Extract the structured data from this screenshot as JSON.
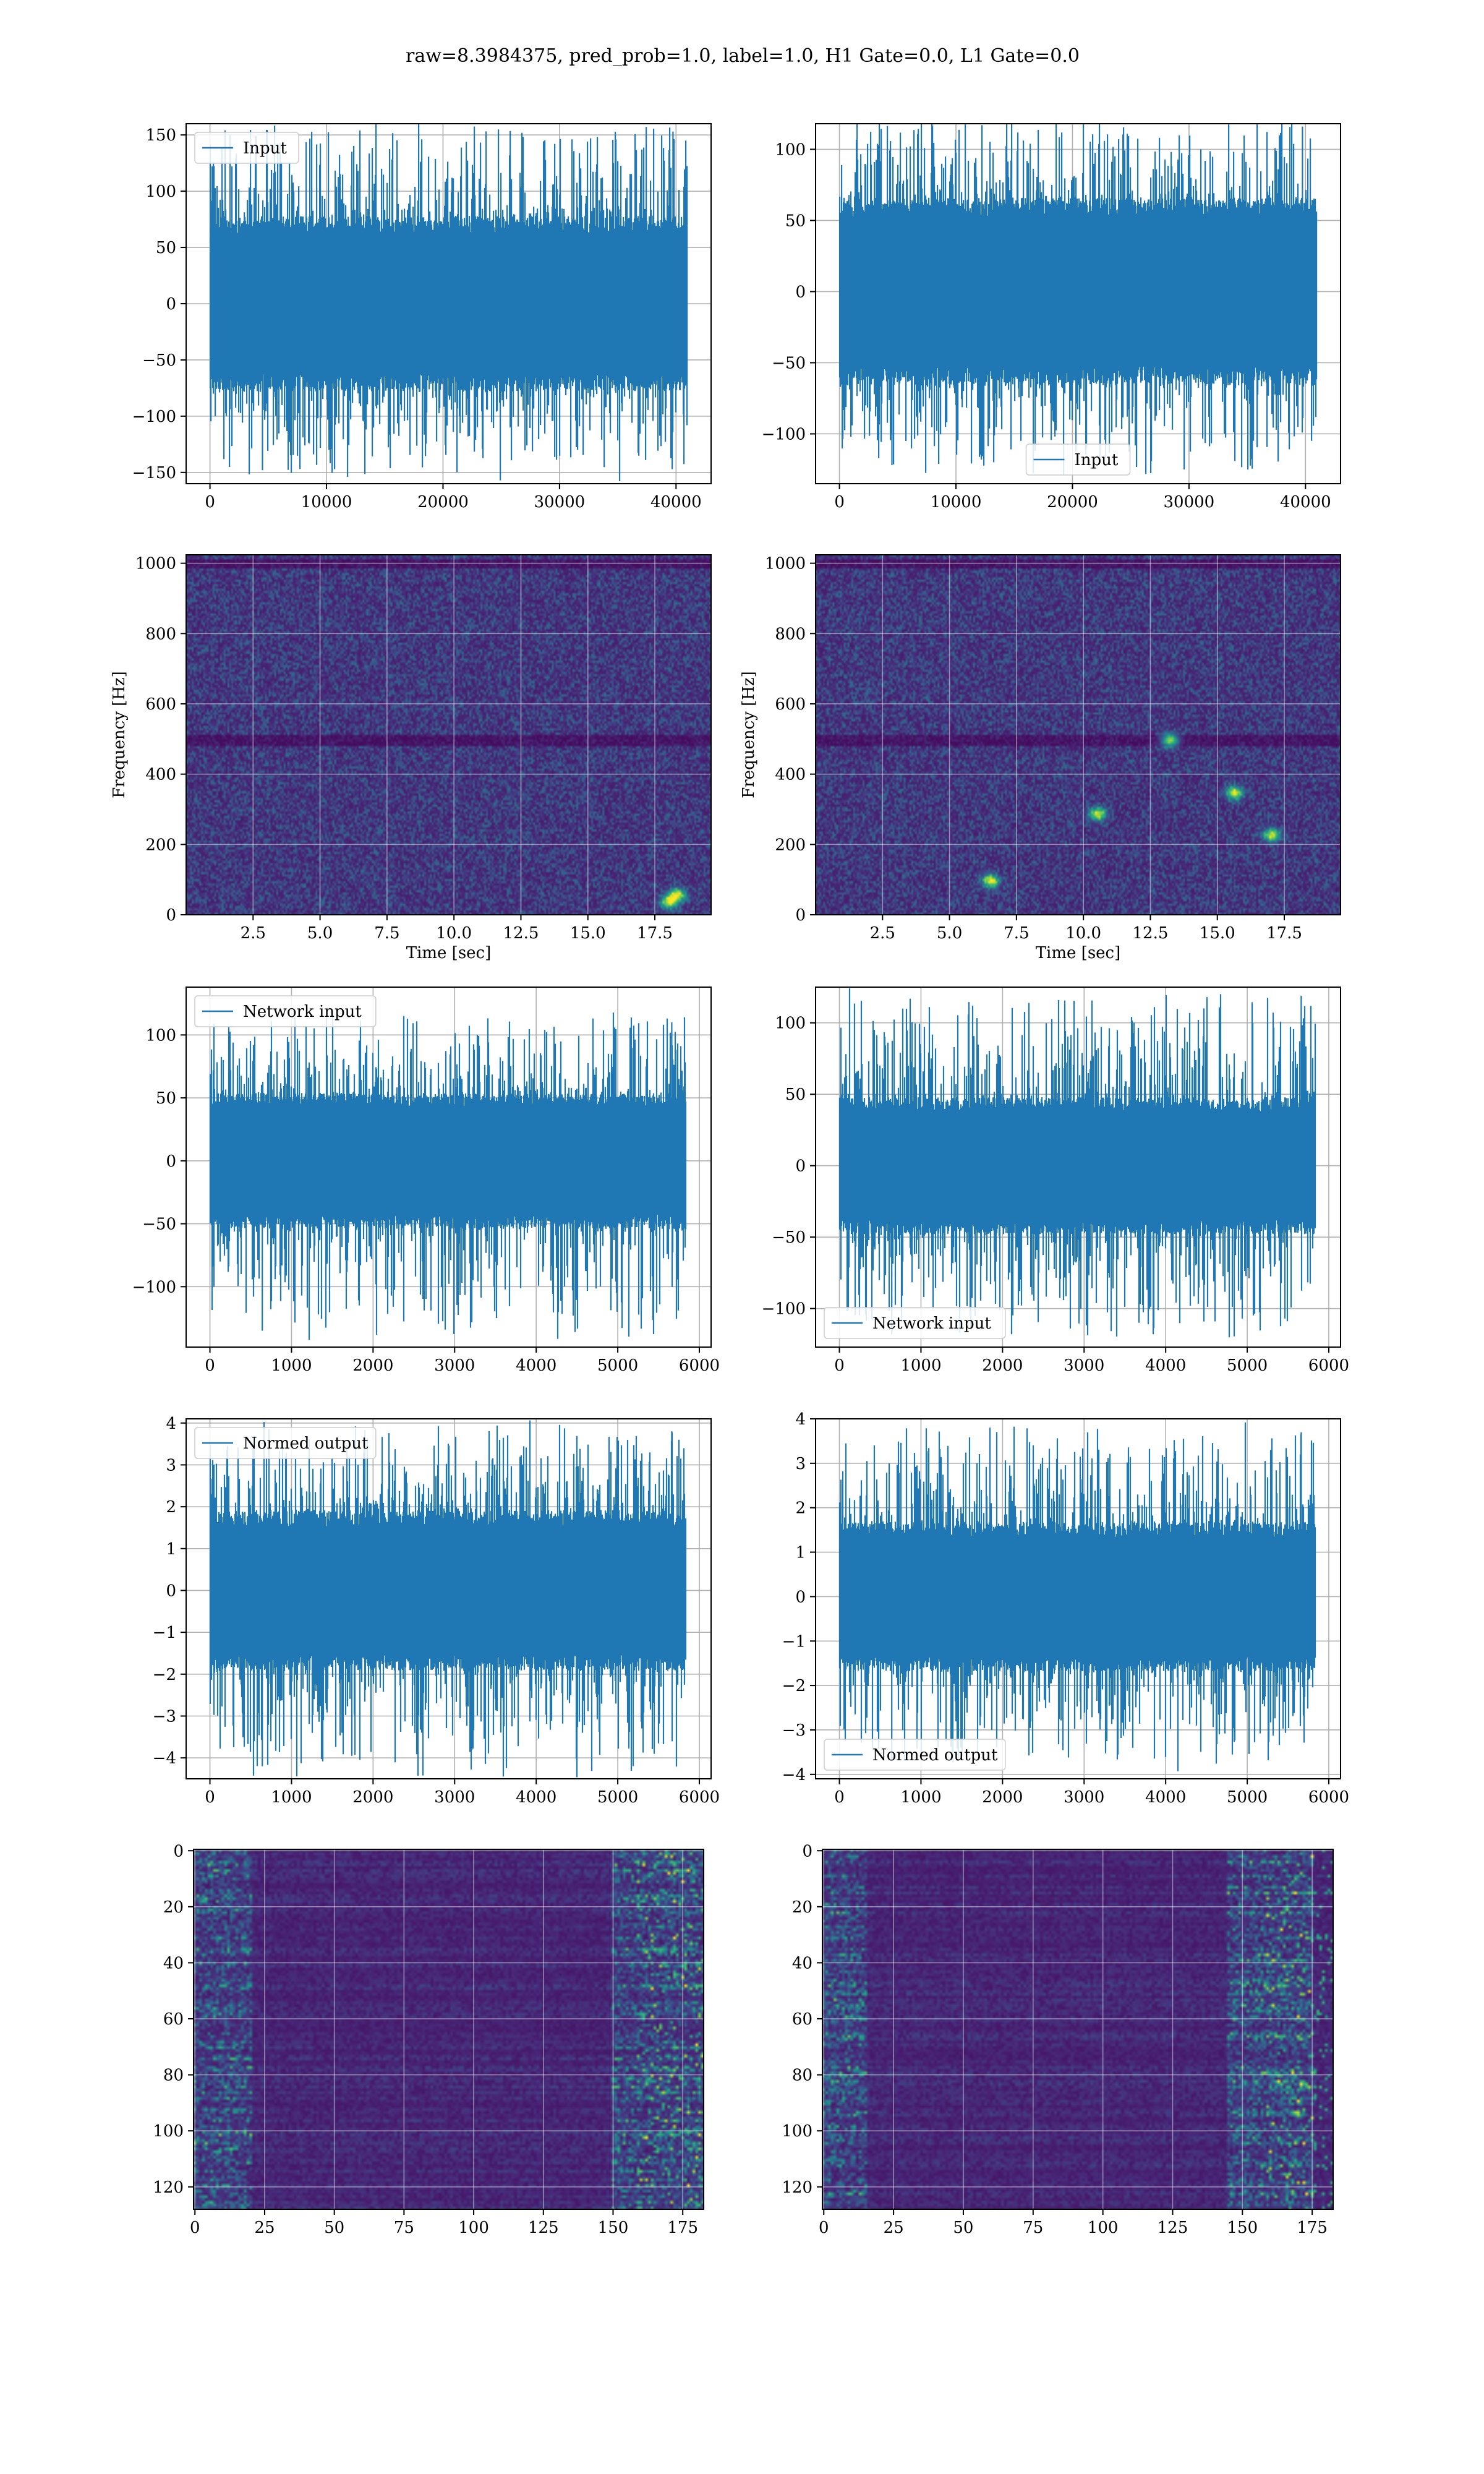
{
  "figure": {
    "suptitle": "raw=8.3984375, pred_prob=1.0, label=1.0, H1 Gate=0.0, L1 Gate=0.0",
    "line_color": "#1f77b4",
    "grid_color": "#b0b0b0",
    "colormap": "viridis"
  },
  "chart_data": [
    {
      "type": "line",
      "panel": "row1-left",
      "series_name": "Input",
      "legend_loc": "upper left",
      "xlim": [
        -2048,
        43008
      ],
      "ylim": [
        -160,
        160
      ],
      "n_points": 40960,
      "xticks": [
        0,
        10000,
        20000,
        30000,
        40000
      ],
      "xtick_labels": [
        "0",
        "10000",
        "20000",
        "30000",
        "40000"
      ],
      "yticks": [
        150,
        100,
        50,
        0,
        -50,
        -100,
        -150
      ],
      "ytick_labels": [
        "150",
        "100",
        "50",
        "0",
        "−50",
        "−100",
        "−150"
      ],
      "xlabel": "",
      "ylabel": "",
      "grid": true,
      "envelope": {
        "core_amp": 65,
        "max": 153,
        "min": -148
      }
    },
    {
      "type": "line",
      "panel": "row1-right",
      "series_name": "Input",
      "legend_loc": "lower center",
      "xlim": [
        -2048,
        43008
      ],
      "ylim": [
        -135,
        118
      ],
      "n_points": 40960,
      "xticks": [
        0,
        10000,
        20000,
        30000,
        40000
      ],
      "xtick_labels": [
        "0",
        "10000",
        "20000",
        "30000",
        "40000"
      ],
      "yticks": [
        100,
        50,
        0,
        -50,
        -100
      ],
      "ytick_labels": [
        "100",
        "50",
        "0",
        "−50",
        "−100"
      ],
      "xlabel": "",
      "ylabel": "",
      "grid": true,
      "envelope": {
        "core_amp": 55,
        "max": 116,
        "min": -122
      }
    },
    {
      "type": "heatmap",
      "panel": "row2-left",
      "series_name": "",
      "xlim": [
        0,
        19.6
      ],
      "ylim": [
        0,
        1024
      ],
      "xticks": [
        2.5,
        5.0,
        7.5,
        10.0,
        12.5,
        15.0,
        17.5
      ],
      "xtick_labels": [
        "2.5",
        "5.0",
        "7.5",
        "10.0",
        "12.5",
        "15.0",
        "17.5"
      ],
      "yticks": [
        0,
        200,
        400,
        600,
        800,
        1000
      ],
      "ytick_labels": [
        "0",
        "200",
        "400",
        "600",
        "800",
        "1000"
      ],
      "xlabel": "Time [sec]",
      "ylabel": "Frequency [Hz]",
      "grid": true,
      "dark_bands_hz": [
        500,
        1000
      ],
      "bright_features": [
        [
          18.0,
          40
        ],
        [
          18.3,
          60
        ]
      ]
    },
    {
      "type": "heatmap",
      "panel": "row2-right",
      "series_name": "",
      "xlim": [
        0,
        19.6
      ],
      "ylim": [
        0,
        1024
      ],
      "xticks": [
        2.5,
        5.0,
        7.5,
        10.0,
        12.5,
        15.0,
        17.5
      ],
      "xtick_labels": [
        "2.5",
        "5.0",
        "7.5",
        "10.0",
        "12.5",
        "15.0",
        "17.5"
      ],
      "yticks": [
        0,
        200,
        400,
        600,
        800,
        1000
      ],
      "ytick_labels": [
        "0",
        "200",
        "400",
        "600",
        "800",
        "1000"
      ],
      "xlabel": "Time [sec]",
      "ylabel": "Frequency [Hz]",
      "grid": true,
      "dark_bands_hz": [
        500,
        1000
      ],
      "bright_features": [
        [
          13.2,
          500
        ],
        [
          10.5,
          290
        ],
        [
          15.6,
          350
        ],
        [
          17.0,
          230
        ],
        [
          6.5,
          100
        ]
      ]
    },
    {
      "type": "line",
      "panel": "row3-left",
      "series_name": "Network input",
      "legend_loc": "upper left",
      "xlim": [
        -292,
        6144
      ],
      "ylim": [
        -148,
        138
      ],
      "n_points": 5836,
      "xticks": [
        0,
        1000,
        2000,
        3000,
        4000,
        5000,
        6000
      ],
      "xtick_labels": [
        "0",
        "1000",
        "2000",
        "3000",
        "4000",
        "5000",
        "6000"
      ],
      "yticks": [
        100,
        50,
        0,
        -50,
        -100
      ],
      "ytick_labels": [
        "100",
        "50",
        "0",
        "−50",
        "−100"
      ],
      "xlabel": "",
      "ylabel": "",
      "grid": true,
      "envelope": {
        "core_amp": 45,
        "max": 110,
        "min": -135
      }
    },
    {
      "type": "line",
      "panel": "row3-right",
      "series_name": "Network input",
      "legend_loc": "lower left",
      "xlim": [
        -292,
        6144
      ],
      "ylim": [
        -127,
        125
      ],
      "n_points": 5836,
      "xticks": [
        0,
        1000,
        2000,
        3000,
        4000,
        5000,
        6000
      ],
      "xtick_labels": [
        "0",
        "1000",
        "2000",
        "3000",
        "4000",
        "5000",
        "6000"
      ],
      "yticks": [
        100,
        50,
        0,
        -50,
        -100
      ],
      "ytick_labels": [
        "100",
        "50",
        "0",
        "−50",
        "−100"
      ],
      "xlabel": "",
      "ylabel": "",
      "grid": true,
      "envelope": {
        "core_amp": 40,
        "max": 119,
        "min": -118
      }
    },
    {
      "type": "line",
      "panel": "row4-left",
      "series_name": "Normed output",
      "legend_loc": "upper left",
      "xlim": [
        -292,
        6144
      ],
      "ylim": [
        -4.5,
        4.1
      ],
      "n_points": 5836,
      "xticks": [
        0,
        1000,
        2000,
        3000,
        4000,
        5000,
        6000
      ],
      "xtick_labels": [
        "0",
        "1000",
        "2000",
        "3000",
        "4000",
        "5000",
        "6000"
      ],
      "yticks": [
        4,
        3,
        2,
        1,
        0,
        -1,
        -2,
        -3,
        -4
      ],
      "ytick_labels": [
        "4",
        "3",
        "2",
        "1",
        "0",
        "−1",
        "−2",
        "−3",
        "−4"
      ],
      "xlabel": "",
      "ylabel": "",
      "grid": true,
      "envelope": {
        "core_amp": 1.6,
        "max": 3.8,
        "min": -4.2
      }
    },
    {
      "type": "line",
      "panel": "row4-right",
      "series_name": "Normed output",
      "legend_loc": "lower left",
      "xlim": [
        -292,
        6144
      ],
      "ylim": [
        -4.1,
        4.0
      ],
      "n_points": 5836,
      "xticks": [
        0,
        1000,
        2000,
        3000,
        4000,
        5000,
        6000
      ],
      "xtick_labels": [
        "0",
        "1000",
        "2000",
        "3000",
        "4000",
        "5000",
        "6000"
      ],
      "yticks": [
        4,
        3,
        2,
        1,
        0,
        -1,
        -2,
        -3,
        -4
      ],
      "ytick_labels": [
        "4",
        "3",
        "2",
        "1",
        "0",
        "−1",
        "−2",
        "−3",
        "−4"
      ],
      "xlabel": "",
      "ylabel": "",
      "grid": true,
      "envelope": {
        "core_amp": 1.4,
        "max": 3.7,
        "min": -3.7
      }
    },
    {
      "type": "heatmap",
      "panel": "row5-left",
      "series_name": "",
      "xlim": [
        -0.5,
        182.5
      ],
      "ylim": [
        128,
        -0.5
      ],
      "rows": 128,
      "cols": 183,
      "xticks": [
        0,
        25,
        50,
        75,
        100,
        125,
        150,
        175
      ],
      "xtick_labels": [
        "0",
        "25",
        "50",
        "75",
        "100",
        "125",
        "150",
        "175"
      ],
      "yticks": [
        0,
        20,
        40,
        60,
        80,
        100,
        120
      ],
      "ytick_labels": [
        "0",
        "20",
        "40",
        "60",
        "80",
        "100",
        "120"
      ],
      "xlabel": "",
      "ylabel": "",
      "grid": true,
      "active_columns": [
        [
          0,
          20
        ],
        [
          150,
          182
        ]
      ]
    },
    {
      "type": "heatmap",
      "panel": "row5-right",
      "series_name": "",
      "xlim": [
        -0.5,
        182.5
      ],
      "ylim": [
        128,
        -0.5
      ],
      "rows": 128,
      "cols": 183,
      "xticks": [
        0,
        25,
        50,
        75,
        100,
        125,
        150,
        175
      ],
      "xtick_labels": [
        "0",
        "25",
        "50",
        "75",
        "100",
        "125",
        "150",
        "175"
      ],
      "yticks": [
        0,
        20,
        40,
        60,
        80,
        100,
        120
      ],
      "ytick_labels": [
        "0",
        "20",
        "40",
        "60",
        "80",
        "100",
        "120"
      ],
      "xlabel": "",
      "ylabel": "",
      "grid": true,
      "active_columns": [
        [
          0,
          15
        ],
        [
          145,
          175
        ]
      ]
    }
  ]
}
